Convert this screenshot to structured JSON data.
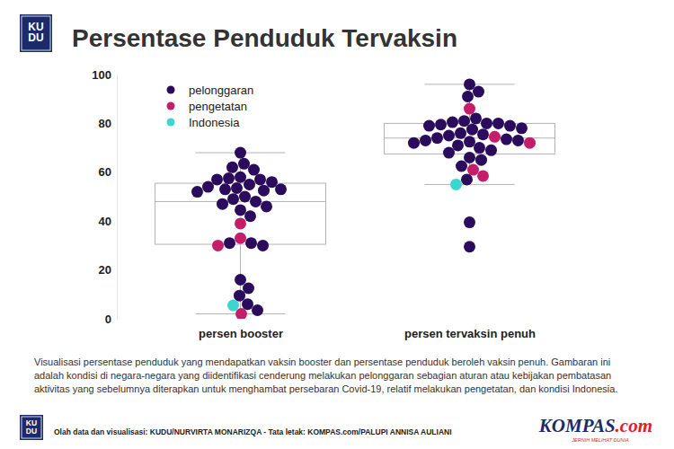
{
  "chart_data": {
    "type": "beeswarm",
    "title": "Persentase Penduduk Tervaksin",
    "logo": [
      "KU",
      "DU"
    ],
    "categories": [
      "persen booster",
      "persen tervaksin penuh"
    ],
    "series": [
      {
        "name": "pelonggaran",
        "color": "#2b0b5c",
        "values": [
          [
            68,
            63.5,
            62,
            61,
            58,
            57.5,
            57,
            57,
            56,
            55,
            54,
            53.5,
            53,
            53,
            52.5,
            52,
            50,
            49,
            48,
            47,
            46,
            44.5,
            42,
            31,
            30,
            31,
            16,
            12.5,
            9.5,
            6,
            3.5
          ],
          [
            96,
            93,
            91,
            82,
            81,
            80.5,
            80,
            80,
            79.5,
            79,
            79,
            78,
            77.5,
            76,
            75.5,
            75,
            74,
            73.5,
            73,
            73,
            72.5,
            72,
            71,
            70,
            69,
            68,
            66,
            65,
            62.5,
            57,
            39.5,
            29.5
          ]
        ]
      },
      {
        "name": "pengetatan",
        "color": "#c41e6a",
        "values": [
          [
            39,
            33,
            30,
            2
          ],
          [
            86,
            74.5,
            72,
            61,
            58.5
          ]
        ]
      },
      {
        "name": "Indonesia",
        "color": "#3cd6d0",
        "values": [
          [
            5.5
          ],
          [
            55
          ]
        ]
      }
    ],
    "boxes": [
      {
        "whisker_low": 2,
        "q1": 30.5,
        "median": 48,
        "q3": 55.5,
        "whisker_high": 68
      },
      {
        "whisker_low": 55,
        "q1": 67.5,
        "median": 74,
        "q3": 80,
        "whisker_high": 96
      }
    ],
    "ylim": [
      0,
      100
    ],
    "yticks": [
      0,
      20,
      40,
      60,
      80,
      100
    ],
    "grid": false,
    "legend": "top-left",
    "caption": [
      "Visualisasi persentase penduduk yang mendapatkan vaksin booster dan persentase penduduk beroleh vaksin penuh. Gambaran ini",
      "adalah kondisi di negara-negara yang diidentifikasi cenderung melakukan pelonggaran sebagian aturan atau kebijakan pembatasan",
      "aktivitas yang sebelumnya diterapkan untuk menghambat persebaran Covid-19, relatif melakukan pengetatan, dan kondisi Indonesia."
    ],
    "credit": "Olah data dan visualisasi: KUDU/NURVIRTA MONARIZQA - Tata letak: KOMPAS.com/PALUPI ANNISA AULIANI",
    "brand": [
      "KOMPAS",
      ".com"
    ],
    "tagline": "JERNIH MELIHAT DUNIA"
  }
}
